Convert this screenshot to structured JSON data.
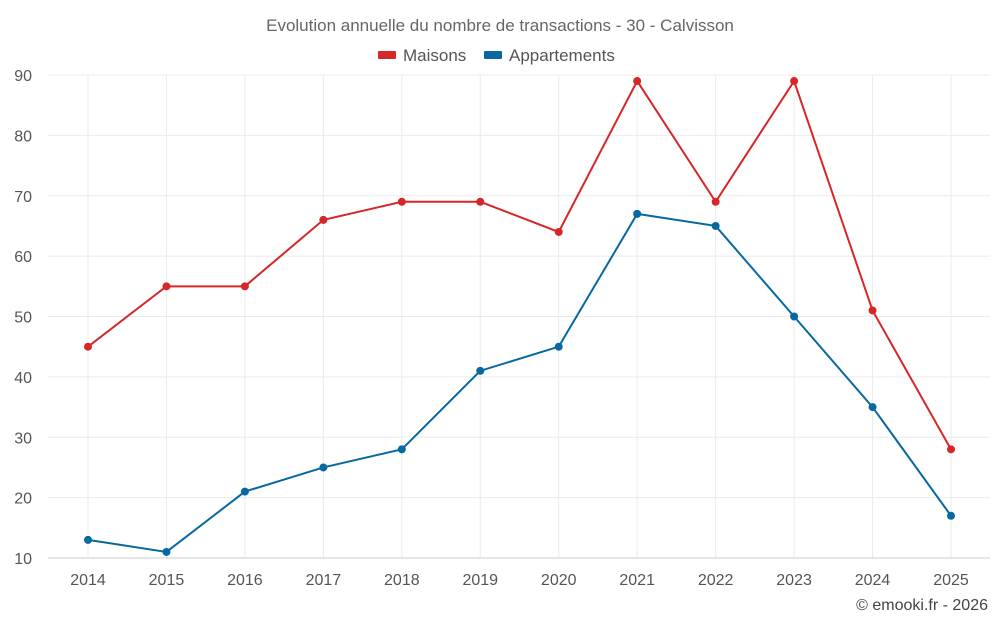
{
  "chart_data": {
    "type": "line",
    "title": "Evolution annuelle du nombre de transactions - 30 - Calvisson",
    "categories": [
      "2014",
      "2015",
      "2016",
      "2017",
      "2018",
      "2019",
      "2020",
      "2021",
      "2022",
      "2023",
      "2024",
      "2025"
    ],
    "series": [
      {
        "name": "Maisons",
        "color": "#d62728",
        "values": [
          45,
          55,
          55,
          66,
          69,
          69,
          64,
          89,
          69,
          89,
          51,
          28
        ]
      },
      {
        "name": "Appartements",
        "color": "#0868a0",
        "values": [
          13,
          11,
          21,
          25,
          28,
          41,
          45,
          67,
          65,
          50,
          35,
          17
        ]
      }
    ],
    "ylim": [
      10,
      90
    ],
    "yticks": [
      10,
      20,
      30,
      40,
      50,
      60,
      70,
      80,
      90
    ],
    "grid": true,
    "legend_position": "top-center",
    "xlabel": "",
    "ylabel": ""
  },
  "credit": "© emooki.fr - 2026"
}
